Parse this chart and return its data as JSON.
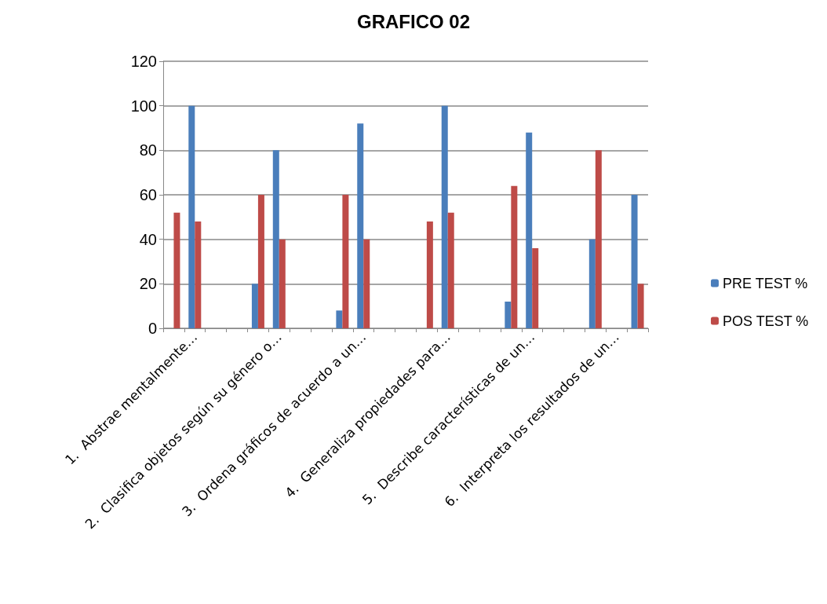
{
  "chart_data": {
    "type": "bar",
    "title": "GRAFICO 02",
    "categories": [
      null,
      "1.  Abstrae mentalmente…",
      null,
      null,
      null,
      "2.  Clasifica objetos según su género o…",
      null,
      null,
      null,
      "3.  Ordena gráficos de acuerdo a un…",
      null,
      null,
      null,
      "4.  Generaliza propiedades para…",
      null,
      null,
      null,
      "5.  Describe características de un…",
      null,
      null,
      null,
      "6.  Interpreta los resultados de un…",
      null
    ],
    "series": [
      {
        "name": "PRE TEST %",
        "color": "#4a7ebb",
        "values": [
          0,
          100,
          0,
          0,
          20,
          80,
          0,
          0,
          8,
          92,
          0,
          0,
          0,
          100,
          0,
          0,
          12,
          88,
          0,
          0,
          40,
          0,
          60
        ]
      },
      {
        "name": "POS TEST %",
        "color": "#be4b48",
        "values": [
          52,
          48,
          0,
          0,
          60,
          40,
          0,
          0,
          60,
          40,
          0,
          0,
          48,
          52,
          0,
          0,
          64,
          36,
          0,
          0,
          80,
          0,
          20
        ]
      }
    ],
    "ylim": [
      0,
      120
    ],
    "yticks": [
      0,
      20,
      40,
      60,
      80,
      100,
      120
    ],
    "grid": "y",
    "legend": "right"
  }
}
